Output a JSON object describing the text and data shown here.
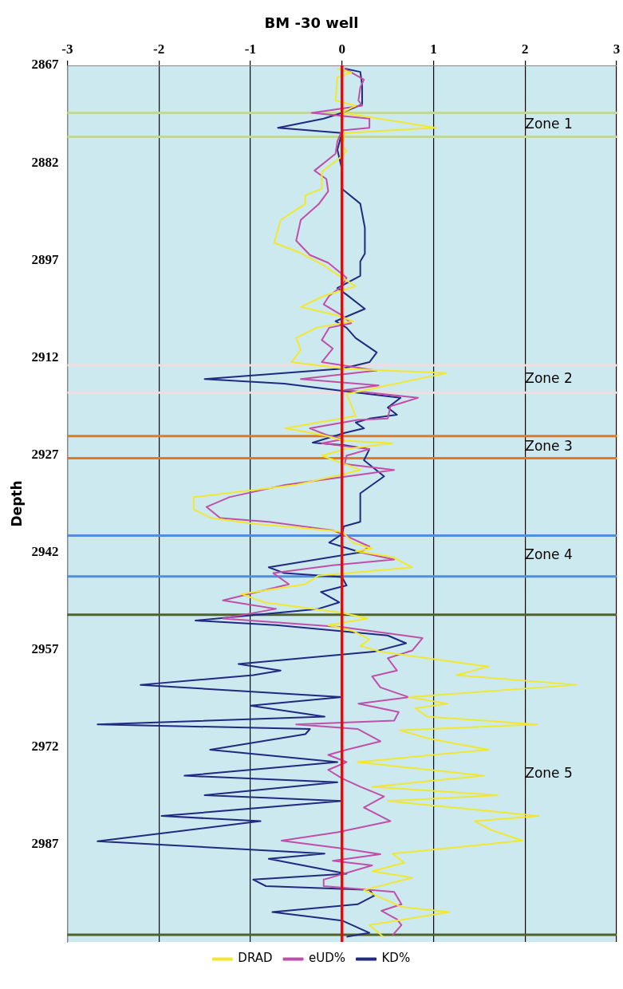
{
  "chart_data": {
    "type": "line",
    "title": "BM -30 well",
    "ylabel": "Depth",
    "orientation": "horizontal",
    "xlim": [
      -3,
      3
    ],
    "xticks": [
      -3,
      -2,
      -1,
      0,
      1,
      2,
      3
    ],
    "ylim": [
      3002,
      2867
    ],
    "yticks": [
      2867,
      2882,
      2897,
      2912,
      2927,
      2942,
      2957,
      2972,
      2987
    ],
    "grid": "x",
    "legend": "bottom",
    "marker": "none",
    "series": [
      {
        "name": "DRAD",
        "color": "#f0e830",
        "x": [
          2867.5,
          2868.1,
          2868.8,
          2872.4,
          2873.2,
          2874.3,
          2876.6,
          2877.4,
          2879.4,
          2880.2,
          2881.3,
          2883.4,
          2886,
          2887,
          2888.3,
          2890.8,
          2894.3,
          2895.9,
          2897.8,
          2899.7,
          2901,
          2902.5,
          2904.2,
          2905.5,
          2906.4,
          2907.4,
          2909,
          2910.8,
          2912.7,
          2913.7,
          2914.4,
          2917.6,
          2921,
          2922.9,
          2923.9,
          2924.8,
          2925.2,
          2926.1,
          2927.1,
          2928.4,
          2929.3,
          2929.9,
          2931.6,
          2933.5,
          2935.4,
          2936.7,
          2937.6,
          2938.8,
          2940.5,
          2941.4,
          2941.8,
          2942.7,
          2944.3,
          2945.6,
          2946.9,
          2948.4,
          2949.7,
          2951.3,
          2952.2,
          2953.2,
          2954.1,
          2955.4,
          2956.4,
          2957.3,
          2959.6,
          2960.9,
          2962.4,
          2964.3,
          2965.3,
          2966,
          2967.3,
          2968.5,
          2969.4,
          2970.7,
          2972.4,
          2974.3,
          2976.4,
          2978.1,
          2979.4,
          2980.3,
          2982.6,
          2983.4,
          2984.7,
          2986.4,
          2988.4,
          2989.8,
          2991.1,
          2992.1,
          2994,
          2996.6,
          2997.4,
          2999.4,
          3001.2
        ],
        "values": [
          -0.05,
          0.1,
          -0.05,
          -0.07,
          0.15,
          0,
          1.03,
          0.03,
          0,
          0.05,
          -0.03,
          -0.22,
          -0.22,
          -0.4,
          -0.4,
          -0.67,
          -0.74,
          -0.45,
          -0.2,
          0,
          0.15,
          -0.2,
          -0.45,
          -0.05,
          0.12,
          -0.28,
          -0.5,
          -0.45,
          -0.55,
          0.03,
          1.14,
          0.05,
          0.15,
          -0.62,
          -0.22,
          0.03,
          0.55,
          0.03,
          -0.22,
          0.03,
          0.2,
          0.03,
          -0.5,
          -1.62,
          -1.62,
          -1.43,
          -0.96,
          0,
          0.12,
          0.33,
          0.15,
          0.55,
          0.77,
          -0.26,
          -0.4,
          -1.1,
          -0.85,
          0,
          0.28,
          -0.15,
          0.12,
          0.3,
          0.2,
          0.42,
          1.6,
          1.25,
          2.56,
          0.73,
          1.15,
          0.8,
          0.93,
          2.13,
          0.63,
          0.96,
          1.6,
          0.17,
          1.55,
          0.33,
          1.7,
          0.5,
          2.15,
          1.45,
          1.62,
          1.97,
          0.55,
          0.68,
          0.33,
          0.77,
          0.24,
          0.65,
          1.17,
          0.3,
          0.45
        ]
      },
      {
        "name": "eUD%",
        "color": "#c04fa8",
        "x": [
          2867.5,
          2869.2,
          2870.4,
          2872.4,
          2873.2,
          2874.3,
          2875.2,
          2876.6,
          2877,
          2878.7,
          2880.6,
          2883.2,
          2884.5,
          2886.4,
          2888.3,
          2890.8,
          2894,
          2896.2,
          2897.4,
          2899.7,
          2901,
          2902.5,
          2903.8,
          2905.5,
          2906.7,
          2907.4,
          2909.3,
          2910.6,
          2912.7,
          2914,
          2915.3,
          2916.3,
          2917,
          2918.2,
          2919.5,
          2921.4,
          2921.6,
          2922.9,
          2923.9,
          2924.6,
          2925.2,
          2926.1,
          2927.1,
          2928.4,
          2929.3,
          2931.6,
          2933.5,
          2935,
          2936.7,
          2937.3,
          2938.6,
          2939.5,
          2941.1,
          2942,
          2943.1,
          2944,
          2945.2,
          2946.9,
          2949.4,
          2950.7,
          2952.2,
          2953.5,
          2955.2,
          2957.1,
          2958.3,
          2960.2,
          2961.1,
          2962.8,
          2964.3,
          2965.3,
          2966.6,
          2967.9,
          2968.5,
          2969.2,
          2971.1,
          2972.4,
          2973.2,
          2974.3,
          2975.5,
          2976.8,
          2978.1,
          2979.6,
          2981.3,
          2983.4,
          2985.1,
          2986.4,
          2987.6,
          2988.5,
          2989.5,
          2990.2,
          2992.4,
          2993.4,
          2994.3,
          2996.2,
          2997.2,
          2998.5,
          2999.4,
          3001
        ],
        "values": [
          0.03,
          0.24,
          0.2,
          0.18,
          0.22,
          -0.33,
          0.3,
          0.3,
          0,
          -0.05,
          -0.07,
          -0.3,
          -0.17,
          -0.15,
          -0.25,
          -0.45,
          -0.5,
          -0.35,
          -0.15,
          0.05,
          0,
          -0.14,
          -0.2,
          0,
          0.1,
          -0.14,
          -0.22,
          -0.1,
          -0.22,
          0.38,
          -0.45,
          0.4,
          0.03,
          0.83,
          0.53,
          0.5,
          0.17,
          -0.35,
          -0.17,
          0,
          -0.22,
          0.3,
          0.05,
          0.03,
          0.57,
          -0.62,
          -1.23,
          -1.48,
          -1.33,
          -0.8,
          -0.1,
          0.05,
          0.3,
          0.2,
          0.57,
          -0.1,
          -0.75,
          -0.58,
          -1.3,
          -0.72,
          -1.3,
          0,
          0.88,
          0.77,
          0.5,
          0.6,
          0.33,
          0.42,
          0.73,
          0.18,
          0.62,
          0.57,
          -0.5,
          0.17,
          0.42,
          0.05,
          -0.15,
          0.05,
          -0.15,
          0,
          0.2,
          0.46,
          0.24,
          0.53,
          -0.05,
          -0.66,
          0,
          0.42,
          -0.1,
          0.33,
          -0.2,
          -0.2,
          0.57,
          0.65,
          0.43,
          0.6,
          0.65,
          0.55
        ]
      },
      {
        "name": "KD%",
        "color": "#1f2a80",
        "x": [
          2867.5,
          2868,
          2870,
          2873,
          2874.3,
          2875.2,
          2876.6,
          2877.4,
          2880,
          2883,
          2886,
          2888.3,
          2892,
          2896,
          2897.2,
          2899.4,
          2901.3,
          2902.3,
          2904.5,
          2906.4,
          2907.4,
          2909,
          2911.2,
          2912.7,
          2913.7,
          2915.3,
          2916,
          2917.2,
          2918.2,
          2919.7,
          2920.8,
          2921.4,
          2922,
          2922.9,
          2923.6,
          2925.1,
          2925.5,
          2926.1,
          2927.8,
          2930.3,
          2932.9,
          2937.3,
          2938,
          2939.2,
          2940.5,
          2941.1,
          2942,
          2944.3,
          2945.2,
          2945.8,
          2947.1,
          2948.1,
          2949.7,
          2950.7,
          2952.5,
          2953.2,
          2954.8,
          2956,
          2957.3,
          2959.2,
          2960.2,
          2960.9,
          2962.4,
          2964.3,
          2965.6,
          2967.3,
          2968.5,
          2969.2,
          2970,
          2972.4,
          2974.3,
          2976.4,
          2977.4,
          2979.4,
          2980.3,
          2982.6,
          2983.4,
          2986.5,
          2988.4,
          2989.2,
          2991.5,
          2992.4,
          2993.4,
          2994,
          2994.9,
          2996.2,
          2997.4,
          2998.7,
          3000.6,
          3001.2
        ],
        "values": [
          0.03,
          0.2,
          0.22,
          0.22,
          0,
          -0.2,
          -0.7,
          0,
          -0.05,
          0,
          0,
          0.2,
          0.25,
          0.25,
          0.2,
          0.2,
          -0.05,
          0.05,
          0.25,
          -0.07,
          0.05,
          0.15,
          0.38,
          0.3,
          0,
          -1.5,
          -0.63,
          0.05,
          0.64,
          0.5,
          0.6,
          0.3,
          0.15,
          0.24,
          0.03,
          -0.32,
          0.03,
          0.3,
          0.24,
          0.46,
          0.2,
          0.2,
          0.02,
          0,
          -0.14,
          0,
          0.2,
          -0.8,
          -0.63,
          0,
          0.05,
          -0.23,
          -0.03,
          -0.26,
          -1.6,
          -0.72,
          0.5,
          0.7,
          0.35,
          -1.13,
          -0.67,
          -0.97,
          -2.2,
          0,
          -1,
          -0.19,
          -2.67,
          -0.35,
          -0.4,
          -1.44,
          -0.05,
          -1.72,
          -0.05,
          -1.5,
          0,
          -1.97,
          -0.89,
          -2.67,
          -0.19,
          -0.8,
          0.05,
          -0.97,
          -0.83,
          0.3,
          0.35,
          0.17,
          -0.76,
          0,
          0.3,
          0.05
        ]
      }
    ],
    "ref_lines": [
      {
        "axis": "x",
        "value": 0,
        "color": "#ff0000"
      },
      {
        "axis": "y",
        "value": 2874.3,
        "color": "#c3d69b"
      },
      {
        "axis": "y",
        "value": 2878,
        "color": "#c3d69b"
      },
      {
        "axis": "y",
        "value": 2913.2,
        "color": "#f2dcdb"
      },
      {
        "axis": "y",
        "value": 2917.4,
        "color": "#f2dcdb"
      },
      {
        "axis": "y",
        "value": 2924.1,
        "color": "#e87722"
      },
      {
        "axis": "y",
        "value": 2927.5,
        "color": "#e87722"
      },
      {
        "axis": "y",
        "value": 2939.4,
        "color": "#4f8fd6"
      },
      {
        "axis": "y",
        "value": 2945.7,
        "color": "#4f8fd6"
      },
      {
        "axis": "y",
        "value": 2951.6,
        "color": "#4f6228"
      },
      {
        "axis": "y",
        "value": 3000.9,
        "color": "#4f6228"
      }
    ],
    "annotations": [
      "Zone 1",
      "Zone 2",
      "Zone 3",
      "Zone 4",
      "Zone 5"
    ]
  }
}
